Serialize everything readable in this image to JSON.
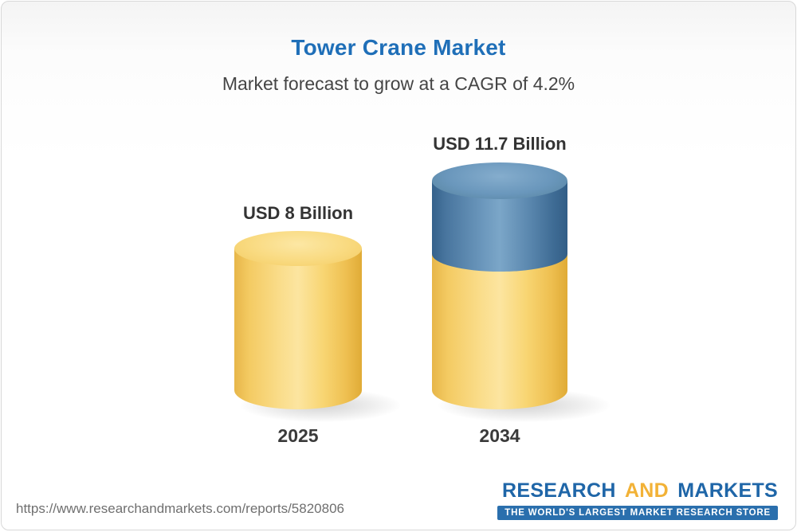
{
  "header": {
    "title": "Tower Crane Market",
    "subtitle": "Market forecast to grow at a CAGR of 4.2%"
  },
  "chart_data": {
    "type": "bar",
    "title": "Tower Crane Market",
    "subtitle": "Market forecast to grow at a CAGR of 4.2%",
    "unit": "USD Billion",
    "cagr_percent": 4.2,
    "categories": [
      "2025",
      "2034"
    ],
    "values": [
      8,
      11.7
    ],
    "value_labels": [
      "USD 8 Billion",
      "USD 11.7 Billion"
    ],
    "legend": "none",
    "axes": "none",
    "colors": {
      "base_segment": "#F6CC62",
      "growth_segment": "#4C80AC",
      "title_blue": "#1F6FB8"
    }
  },
  "footer": {
    "url": "https://www.researchandmarkets.com/reports/5820806",
    "logo": {
      "word1": "RESEARCH",
      "word2": "AND",
      "word3": "MARKETS",
      "tagline": "THE WORLD'S LARGEST MARKET RESEARCH STORE"
    }
  }
}
